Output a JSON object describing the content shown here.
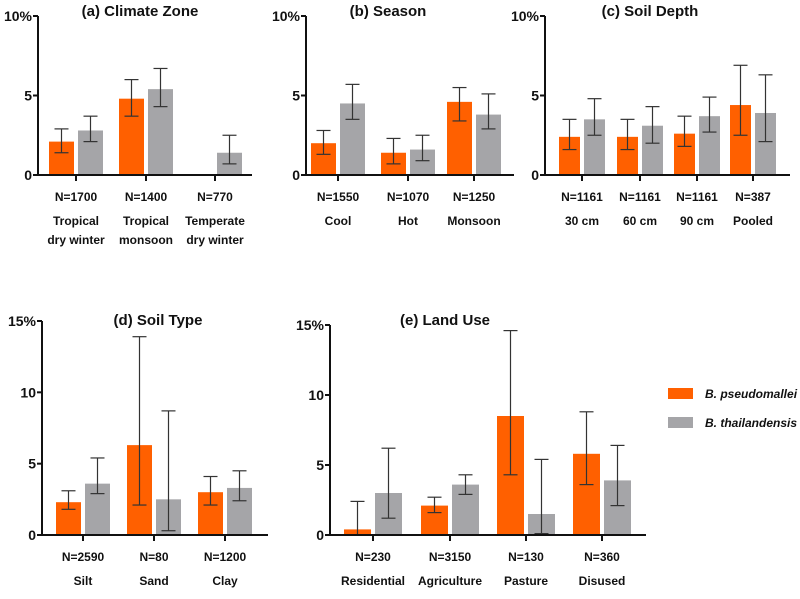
{
  "chart_data": {
    "type": "bar",
    "legend": {
      "placement": "right",
      "entries": [
        {
          "name": "B. pseudomallei",
          "color": "#ff6000"
        },
        {
          "name": "B. thailandensis",
          "color": "#a5a5a8"
        }
      ]
    },
    "error_bar_color": "#333333",
    "panels": [
      {
        "title": "(a) Climate Zone",
        "ylim": [
          0,
          10
        ],
        "yticks": [
          "0",
          "5",
          "10%"
        ],
        "ytick_values": [
          0,
          5,
          10
        ],
        "n_labels": [
          "N=1700",
          "N=1400",
          "N=770"
        ],
        "categories": [
          [
            "Tropical",
            "dry winter"
          ],
          [
            "Tropical",
            "monsoon"
          ],
          [
            "Temperate",
            "dry winter"
          ]
        ],
        "series": [
          {
            "name": "B. pseudomallei",
            "values": [
              2.1,
              4.8,
              null
            ],
            "lower": [
              1.4,
              3.7,
              null
            ],
            "upper": [
              2.9,
              6.0,
              null
            ]
          },
          {
            "name": "B. thailandensis",
            "values": [
              2.8,
              5.4,
              1.4
            ],
            "lower": [
              2.1,
              4.3,
              0.7
            ],
            "upper": [
              3.7,
              6.7,
              2.5
            ]
          }
        ]
      },
      {
        "title": "(b) Season",
        "ylim": [
          0,
          10
        ],
        "yticks": [
          "0",
          "5",
          "10%"
        ],
        "ytick_values": [
          0,
          5,
          10
        ],
        "n_labels": [
          "N=1550",
          "N=1070",
          "N=1250"
        ],
        "categories": [
          [
            "Cool"
          ],
          [
            "Hot"
          ],
          [
            "Monsoon"
          ]
        ],
        "series": [
          {
            "name": "B. pseudomallei",
            "values": [
              2.0,
              1.4,
              4.6
            ],
            "lower": [
              1.3,
              0.7,
              3.4
            ],
            "upper": [
              2.8,
              2.3,
              5.5
            ]
          },
          {
            "name": "B. thailandensis",
            "values": [
              4.5,
              1.6,
              3.8
            ],
            "lower": [
              3.5,
              0.9,
              2.9
            ],
            "upper": [
              5.7,
              2.5,
              5.1
            ]
          }
        ]
      },
      {
        "title": "(c) Soil Depth",
        "ylim": [
          0,
          10
        ],
        "yticks": [
          "0",
          "5",
          "10%"
        ],
        "ytick_values": [
          0,
          5,
          10
        ],
        "n_labels": [
          "N=1161",
          "N=1161",
          "N=1161",
          "N=387"
        ],
        "categories": [
          [
            "30 cm"
          ],
          [
            "60 cm"
          ],
          [
            "90 cm"
          ],
          [
            "Pooled"
          ]
        ],
        "series": [
          {
            "name": "B. pseudomallei",
            "values": [
              2.4,
              2.4,
              2.6,
              4.4
            ],
            "lower": [
              1.6,
              1.6,
              1.8,
              2.5
            ],
            "upper": [
              3.5,
              3.5,
              3.7,
              6.9
            ]
          },
          {
            "name": "B. thailandensis",
            "values": [
              3.5,
              3.1,
              3.7,
              3.9
            ],
            "lower": [
              2.5,
              2.0,
              2.7,
              2.1
            ],
            "upper": [
              4.8,
              4.3,
              4.9,
              6.3
            ]
          }
        ]
      },
      {
        "title": "(d) Soil Type",
        "ylim": [
          0,
          15
        ],
        "yticks": [
          "0",
          "5",
          "10",
          "15%"
        ],
        "ytick_values": [
          0,
          5,
          10,
          15
        ],
        "n_labels": [
          "N=2590",
          "N=80",
          "N=1200"
        ],
        "categories": [
          [
            "Silt"
          ],
          [
            "Sand"
          ],
          [
            "Clay"
          ]
        ],
        "series": [
          {
            "name": "B. pseudomallei",
            "values": [
              2.3,
              6.3,
              3.0
            ],
            "lower": [
              1.8,
              2.1,
              2.1
            ],
            "upper": [
              3.1,
              13.9,
              4.1
            ]
          },
          {
            "name": "B. thailandensis",
            "values": [
              3.6,
              2.5,
              3.3
            ],
            "lower": [
              2.9,
              0.3,
              2.4
            ],
            "upper": [
              5.4,
              8.7,
              4.5
            ]
          }
        ]
      },
      {
        "title": "(e) Land Use",
        "ylim": [
          0,
          15
        ],
        "yticks": [
          "0",
          "5",
          "10",
          "15%"
        ],
        "ytick_values": [
          0,
          5,
          10,
          15
        ],
        "n_labels": [
          "N=230",
          "N=3150",
          "N=130",
          "N=360"
        ],
        "categories": [
          [
            "Residential"
          ],
          [
            "Agriculture"
          ],
          [
            "Pasture"
          ],
          [
            "Disused"
          ]
        ],
        "series": [
          {
            "name": "B. pseudomallei",
            "values": [
              0.4,
              2.1,
              8.5,
              5.8
            ],
            "lower": [
              0.0,
              1.6,
              4.3,
              3.6
            ],
            "upper": [
              2.4,
              2.7,
              14.6,
              8.8
            ]
          },
          {
            "name": "B. thailandensis",
            "values": [
              3.0,
              3.6,
              1.5,
              3.9
            ],
            "lower": [
              1.2,
              2.9,
              0.1,
              2.1
            ],
            "upper": [
              6.2,
              4.3,
              5.4,
              6.4
            ]
          }
        ]
      }
    ]
  }
}
